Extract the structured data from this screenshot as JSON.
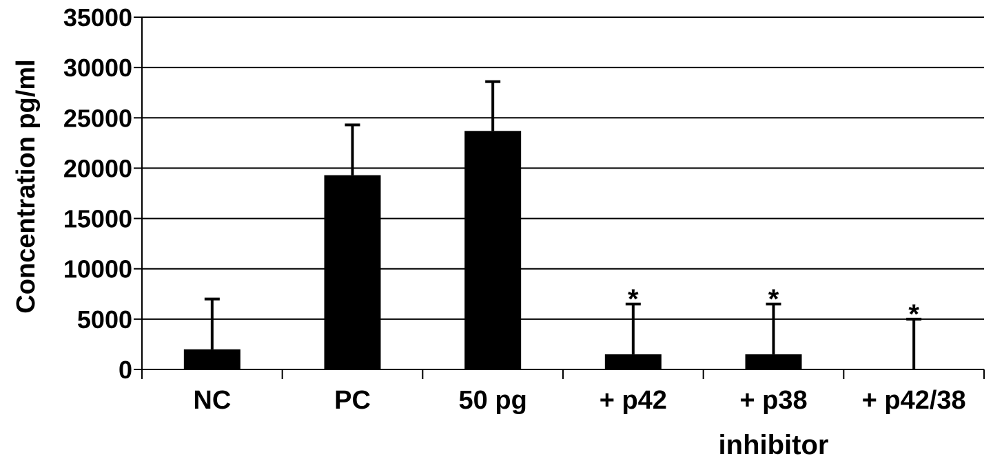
{
  "chart_data": {
    "type": "bar",
    "title": "",
    "xlabel": "inhibitor",
    "ylabel": "Concentration pg/ml",
    "ylim": [
      0,
      35000
    ],
    "yticks": [
      0,
      5000,
      10000,
      15000,
      20000,
      25000,
      30000,
      35000
    ],
    "grid": true,
    "legend": "none",
    "categories": [
      "NC",
      "PC",
      "50 pg",
      "+ p42",
      "+ p38",
      "+ p42/38"
    ],
    "values": [
      2000,
      19300,
      23700,
      1500,
      1500,
      0
    ],
    "error_upper": [
      5000,
      5000,
      4900,
      5000,
      5000,
      5000
    ],
    "annotations": [
      "",
      "",
      "",
      "*",
      "*",
      "*"
    ],
    "bar_color": "#000000",
    "grid_color": "#000000"
  }
}
